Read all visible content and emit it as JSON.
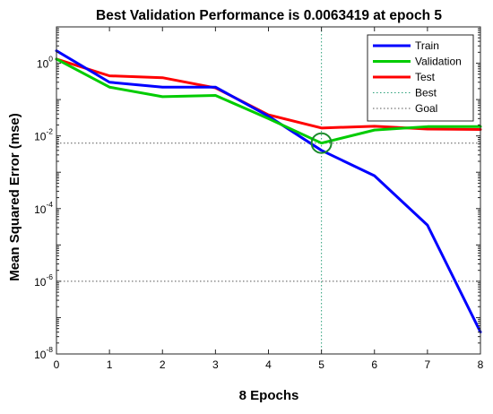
{
  "chart_data": {
    "type": "line",
    "title": "Best Validation Performance is 0.0063419 at epoch 5",
    "xlabel": "8 Epochs",
    "ylabel": "Mean Squared Error  (mse)",
    "xlim": [
      0,
      8
    ],
    "ylim": [
      1e-08,
      10
    ],
    "yscale": "log",
    "x_ticks": [
      "0",
      "1",
      "2",
      "3",
      "4",
      "5",
      "6",
      "7",
      "8"
    ],
    "y_ticks": [
      {
        "base": "10",
        "exp": "0",
        "value": 1
      },
      {
        "base": "10",
        "exp": "-2",
        "value": 0.01
      },
      {
        "base": "10",
        "exp": "-4",
        "value": 0.0001
      },
      {
        "base": "10",
        "exp": "-6",
        "value": 1e-06
      },
      {
        "base": "10",
        "exp": "-8",
        "value": 1e-08
      }
    ],
    "grid": false,
    "legend_position": "top-right",
    "series": [
      {
        "name": "Train",
        "color": "#0000ff",
        "x": [
          0,
          1,
          2,
          3,
          4,
          5,
          6,
          7,
          8
        ],
        "values": [
          2.2,
          0.3,
          0.22,
          0.22,
          0.035,
          0.004,
          0.0008,
          3.5e-05,
          4e-08
        ]
      },
      {
        "name": "Validation",
        "color": "#00cc00",
        "x": [
          0,
          1,
          2,
          3,
          4,
          5,
          6,
          7,
          8
        ],
        "values": [
          1.3,
          0.22,
          0.12,
          0.13,
          0.03,
          0.0063419,
          0.0145,
          0.018,
          0.018
        ]
      },
      {
        "name": "Test",
        "color": "#ff0000",
        "x": [
          0,
          1,
          2,
          3,
          4,
          5,
          6,
          7,
          8
        ],
        "values": [
          1.3,
          0.45,
          0.4,
          0.21,
          0.038,
          0.0165,
          0.0185,
          0.0155,
          0.015
        ]
      }
    ],
    "best": {
      "name": "Best",
      "epoch": 5,
      "value": 0.0063419,
      "color": "#2aa07a"
    },
    "goal": {
      "name": "Goal",
      "value": 1e-06,
      "color": "#555555"
    }
  }
}
